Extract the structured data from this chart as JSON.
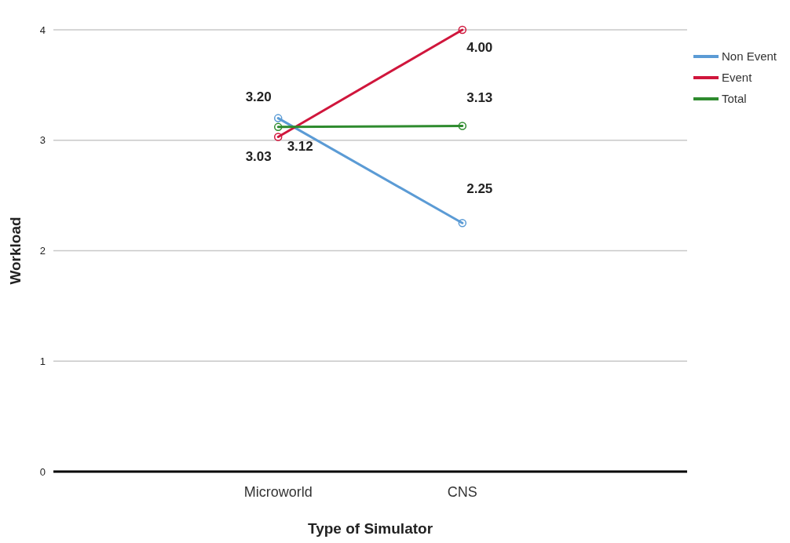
{
  "chart_data": {
    "type": "line",
    "xlabel": "Type of Simulator",
    "ylabel": "Workload",
    "categories": [
      "Microworld",
      "CNS"
    ],
    "series": [
      {
        "name": "Non Event",
        "color": "#5b9bd5",
        "values": [
          3.2,
          2.25
        ],
        "value_labels": [
          "3.20",
          "2.25"
        ]
      },
      {
        "name": "Event",
        "color": "#d0163c",
        "values": [
          3.03,
          4.0
        ],
        "value_labels": [
          "3.03",
          "4.00"
        ]
      },
      {
        "name": "Total",
        "color": "#2e8b2e",
        "values": [
          3.12,
          3.13
        ],
        "value_labels": [
          "3.12",
          "3.13"
        ]
      }
    ],
    "ylim": [
      0,
      4
    ],
    "yticks": [
      0,
      1,
      2,
      3,
      4
    ],
    "grid": "y",
    "legend": "right",
    "marker": "circle",
    "line_style": "solid"
  }
}
